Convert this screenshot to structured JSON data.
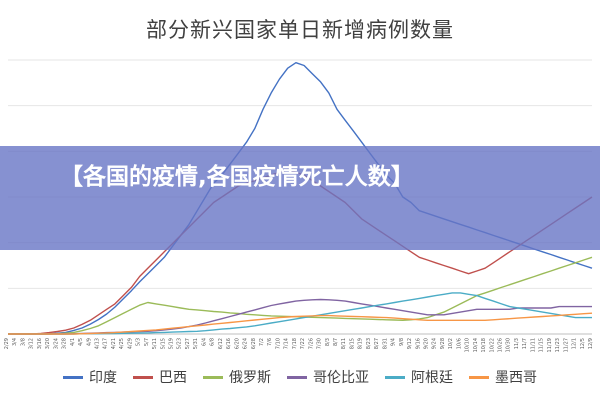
{
  "chart_data": {
    "type": "line",
    "title": "部分新兴国家单日新增病例数量",
    "xlabel": "",
    "ylabel": "",
    "x": [
      "2/29",
      "3/4",
      "3/8",
      "3/12",
      "3/16",
      "3/20",
      "3/24",
      "3/28",
      "4/1",
      "4/5",
      "4/9",
      "4/13",
      "4/17",
      "4/21",
      "4/25",
      "4/29",
      "5/3",
      "5/7",
      "5/11",
      "5/15",
      "5/19",
      "5/23",
      "5/27",
      "5/31",
      "6/4",
      "6/8",
      "6/12",
      "6/16",
      "6/20",
      "6/24",
      "6/28",
      "7/2",
      "7/6",
      "7/10",
      "7/14",
      "7/18",
      "7/22",
      "7/26",
      "7/30",
      "8/3",
      "8/7",
      "8/11",
      "8/15",
      "8/19",
      "8/23",
      "8/27",
      "8/31",
      "9/4",
      "9/8",
      "9/12",
      "9/16",
      "9/20",
      "9/24",
      "9/28",
      "10/2",
      "10/6",
      "10/10",
      "10/14",
      "10/18",
      "10/22",
      "10/26",
      "10/30",
      "11/3",
      "11/7",
      "11/11",
      "11/15",
      "11/19",
      "11/23",
      "11/27",
      "12/1",
      "12/5",
      "12/9"
    ],
    "ylim": [
      0,
      100000
    ],
    "grid": true,
    "legend_position": "bottom",
    "series": [
      {
        "name": "印度",
        "color": "#4472C4",
        "values": [
          0,
          0,
          0,
          0,
          0,
          100,
          300,
          600,
          1300,
          2200,
          3600,
          5300,
          7300,
          9800,
          12800,
          15800,
          19000,
          22000,
          25000,
          28000,
          32000,
          36000,
          40000,
          45000,
          50000,
          55000,
          58000,
          62000,
          66000,
          70000,
          75000,
          82000,
          88000,
          93000,
          97000,
          99000,
          98000,
          95000,
          92000,
          88000,
          82000,
          78000,
          74000,
          70000,
          66000,
          62000,
          58000,
          55000,
          50000,
          48000,
          45000,
          44000,
          43000,
          42000,
          41000,
          40000,
          39000,
          38000,
          37000,
          36000,
          35000,
          34000,
          33000,
          32000,
          31000,
          30000,
          29000,
          28000,
          27000,
          26000,
          25000,
          24000
        ]
      },
      {
        "name": "巴西",
        "color": "#C0504D",
        "values": [
          0,
          0,
          0,
          0,
          200,
          500,
          900,
          1400,
          2200,
          3500,
          5000,
          7000,
          9000,
          11000,
          14000,
          17000,
          21000,
          24000,
          27000,
          30000,
          33000,
          36000,
          39000,
          42000,
          45000,
          48000,
          50000,
          52000,
          54000,
          55000,
          56000,
          57000,
          58000,
          59000,
          60000,
          59000,
          58000,
          56000,
          54000,
          52000,
          50000,
          48000,
          45000,
          42000,
          40000,
          38000,
          36000,
          34000,
          32000,
          30000,
          28000,
          27000,
          26000,
          25000,
          24000,
          23000,
          22000,
          23000,
          24000,
          26000,
          28000,
          30000,
          32000,
          34000,
          36000,
          38000,
          40000,
          42000,
          44000,
          46000,
          48000,
          50000
        ]
      },
      {
        "name": "俄罗斯",
        "color": "#9BBB59",
        "values": [
          0,
          0,
          0,
          0,
          0,
          0,
          100,
          300,
          600,
          1200,
          2000,
          3000,
          4500,
          6000,
          7500,
          9000,
          10500,
          11500,
          11000,
          10500,
          10000,
          9500,
          9000,
          8800,
          8500,
          8200,
          8000,
          7700,
          7500,
          7200,
          7000,
          6800,
          6600,
          6500,
          6400,
          6300,
          6200,
          6100,
          6000,
          5900,
          5800,
          5700,
          5600,
          5500,
          5400,
          5300,
          5200,
          5100,
          5000,
          5200,
          5500,
          6000,
          7000,
          8000,
          9500,
          11000,
          12500,
          14000,
          15000,
          16000,
          17000,
          18000,
          19000,
          20000,
          21000,
          22000,
          23000,
          24000,
          25000,
          26000,
          27000,
          28000
        ]
      },
      {
        "name": "哥伦比亚",
        "color": "#8064A2",
        "values": [
          0,
          0,
          0,
          0,
          0,
          0,
          0,
          0,
          100,
          200,
          300,
          400,
          500,
          600,
          700,
          800,
          900,
          1000,
          1200,
          1500,
          1800,
          2200,
          2700,
          3300,
          4000,
          4800,
          5600,
          6400,
          7200,
          8000,
          8800,
          9600,
          10400,
          11000,
          11500,
          12000,
          12300,
          12500,
          12600,
          12500,
          12300,
          12000,
          11500,
          11000,
          10500,
          10000,
          9500,
          9000,
          8500,
          8000,
          7500,
          7000,
          7000,
          7000,
          7500,
          8000,
          8500,
          9000,
          9000,
          9000,
          9000,
          9000,
          9500,
          9500,
          9500,
          9500,
          9500,
          10000,
          10000,
          10000,
          10000,
          10000
        ]
      },
      {
        "name": "阿根廷",
        "color": "#4BACC6",
        "values": [
          0,
          0,
          0,
          0,
          0,
          0,
          0,
          0,
          0,
          100,
          100,
          100,
          150,
          200,
          250,
          300,
          350,
          400,
          500,
          600,
          700,
          800,
          900,
          1000,
          1200,
          1500,
          1800,
          2000,
          2300,
          2600,
          3000,
          3500,
          4000,
          4500,
          5000,
          5500,
          6000,
          6500,
          7000,
          7500,
          8000,
          8500,
          9000,
          9500,
          10000,
          10500,
          11000,
          11500,
          12000,
          12500,
          13000,
          13500,
          14000,
          14500,
          15000,
          15000,
          14500,
          14000,
          13000,
          12000,
          11000,
          10000,
          9500,
          9000,
          8500,
          8000,
          7500,
          7000,
          6500,
          6000,
          6000,
          6000
        ]
      },
      {
        "name": "墨西哥",
        "color": "#F79646",
        "values": [
          0,
          0,
          0,
          0,
          0,
          0,
          0,
          0,
          0,
          100,
          200,
          300,
          400,
          500,
          700,
          900,
          1100,
          1300,
          1500,
          1800,
          2100,
          2400,
          2700,
          3000,
          3300,
          3600,
          3900,
          4200,
          4500,
          4800,
          5100,
          5400,
          5700,
          6000,
          6200,
          6400,
          6500,
          6600,
          6700,
          6700,
          6600,
          6500,
          6400,
          6300,
          6200,
          6100,
          6000,
          5800,
          5600,
          5400,
          5200,
          5000,
          5000,
          5000,
          5000,
          5000,
          5000,
          5000,
          5000,
          5200,
          5400,
          5600,
          5800,
          6000,
          6200,
          6400,
          6600,
          6800,
          7000,
          7200,
          7400,
          7600
        ]
      }
    ]
  },
  "banner": {
    "text": "【各国的疫情,各国疫情死亡人数】"
  }
}
